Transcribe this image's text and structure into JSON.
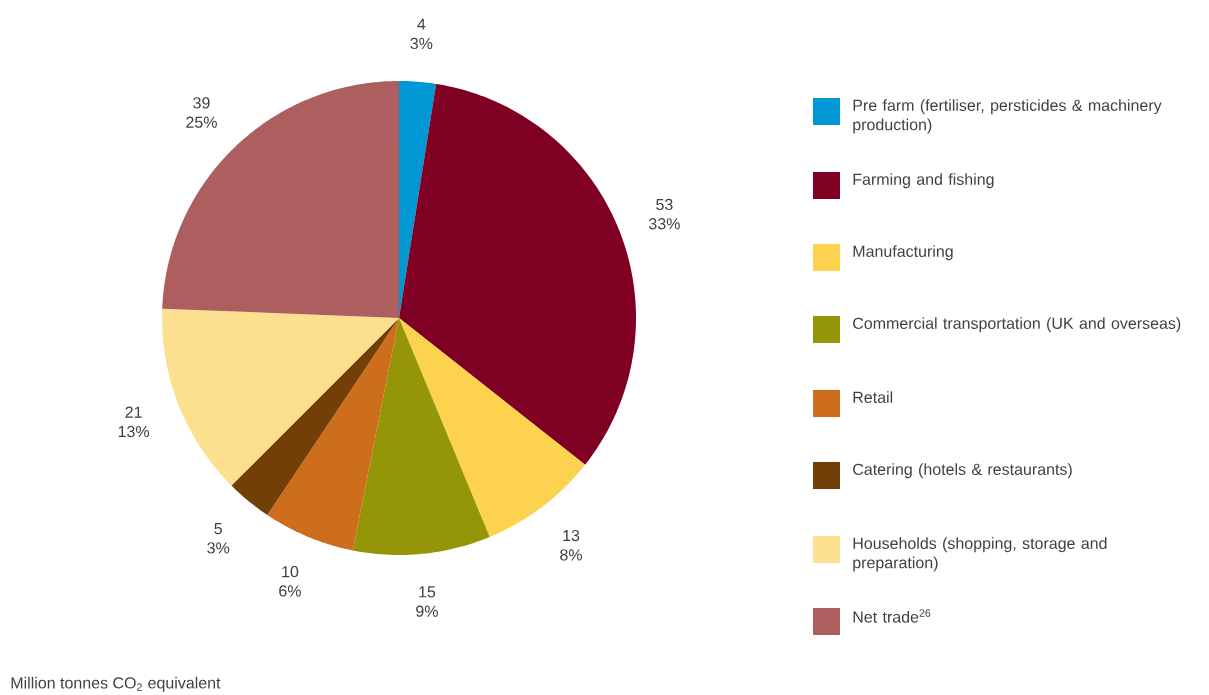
{
  "chart_data": {
    "type": "pie",
    "categories": [
      "Pre farm (fertiliser, persticides & machinery production)",
      "Farming and fishing",
      "Manufacturing",
      "Commercial transportation (UK and overseas)",
      "Retail",
      "Catering (hotels & restaurants)",
      "Households (shopping, storage and preparation)",
      "Net trade$^{26}$"
    ],
    "values": [
      4,
      53,
      13,
      15,
      10,
      5,
      21,
      39
    ],
    "colors": [
      "#0098d4",
      "#800024",
      "#fdd24f",
      "#949507",
      "#cc6e1b",
      "#723f06",
      "#fde08f",
      "#ad5f5f"
    ],
    "value_labels": [
      "4 3%",
      "53 33%",
      "13 8%",
      "15 9%",
      "10 6%",
      "5 3%",
      "21 13%",
      "39 25%"
    ],
    "legend": "right",
    "annotations": [
      "Million tonnes CO$_{2}$ equivalent"
    ]
  }
}
